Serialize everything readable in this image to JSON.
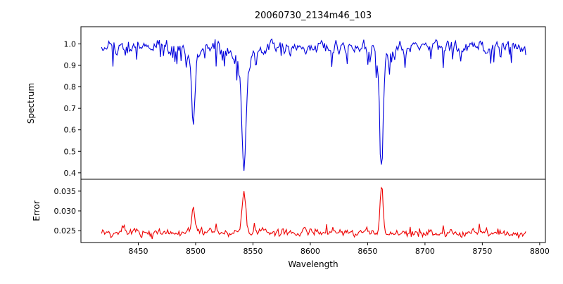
{
  "title": "20060730_2134m46_103",
  "xlabel": "Wavelength",
  "chart_data": [
    {
      "type": "line",
      "name": "spectrum",
      "ylabel": "Spectrum",
      "color": "#0000dd",
      "xlim": [
        8400,
        8805
      ],
      "ylim": [
        0.37,
        1.08
      ],
      "yticks": [
        1.0,
        0.9,
        0.8,
        0.7,
        0.6,
        0.5,
        0.4
      ],
      "ytick_labels": [
        "1.0",
        "0.9",
        "0.8",
        "0.7",
        "0.6",
        "0.5",
        "0.4"
      ],
      "x_start": 8418,
      "x_end": 8788,
      "x_step": 0.9,
      "continuum_level": 0.985,
      "noise": {
        "ar_coeff": 0.45,
        "ar_sigma": 0.013,
        "white_sigma": 0.006,
        "dip_prob": 0.12,
        "dip_min": 0.02,
        "dip_extra": 0.07
      },
      "absorption_lines": [
        {
          "center": 8498.0,
          "core_depth": 0.32,
          "core_sigma": 1.2,
          "wing_depth": 0.06,
          "wing_sigma": 4.0,
          "min_value": 0.6
        },
        {
          "center": 8542.1,
          "core_depth": 0.47,
          "core_sigma": 1.7,
          "wing_depth": 0.1,
          "wing_sigma": 6.5,
          "min_value": 0.41
        },
        {
          "center": 8662.1,
          "core_depth": 0.44,
          "core_sigma": 1.4,
          "wing_depth": 0.08,
          "wing_sigma": 5.0,
          "min_value": 0.46
        }
      ],
      "clamp": [
        0.38,
        1.055
      ]
    },
    {
      "type": "line",
      "name": "error",
      "ylabel": "Error",
      "color": "#ee0000",
      "xlim": [
        8400,
        8805
      ],
      "ylim": [
        0.022,
        0.038
      ],
      "yticks": [
        0.035,
        0.03,
        0.025
      ],
      "ytick_labels": [
        "0.035",
        "0.030",
        "0.025"
      ],
      "x_start": 8418,
      "x_end": 8788,
      "x_step": 0.9,
      "baseline_level": 0.0245,
      "noise": {
        "ar_coeff": 0.5,
        "ar_sigma": 0.00035,
        "white_sigma": 0.0002,
        "spike_prob": 0.09,
        "spike_max": 0.0018
      },
      "peaks": [
        {
          "center": 8498.0,
          "height": 0.0065,
          "sigma": 1.3,
          "peak_value": 0.031
        },
        {
          "center": 8542.1,
          "height": 0.0105,
          "sigma": 1.6,
          "peak_value": 0.035
        },
        {
          "center": 8662.1,
          "height": 0.013,
          "sigma": 1.3,
          "peak_value": 0.0375
        }
      ],
      "clamp": [
        0.0225,
        0.0378
      ]
    }
  ],
  "xticks": [
    8450,
    8500,
    8550,
    8600,
    8650,
    8700,
    8750,
    8800
  ],
  "xtick_labels": [
    "8450",
    "8500",
    "8550",
    "8600",
    "8650",
    "8700",
    "8750",
    "8800"
  ],
  "layout": {
    "legend": "none",
    "grid": false,
    "panels": 2,
    "shared_x": true
  }
}
